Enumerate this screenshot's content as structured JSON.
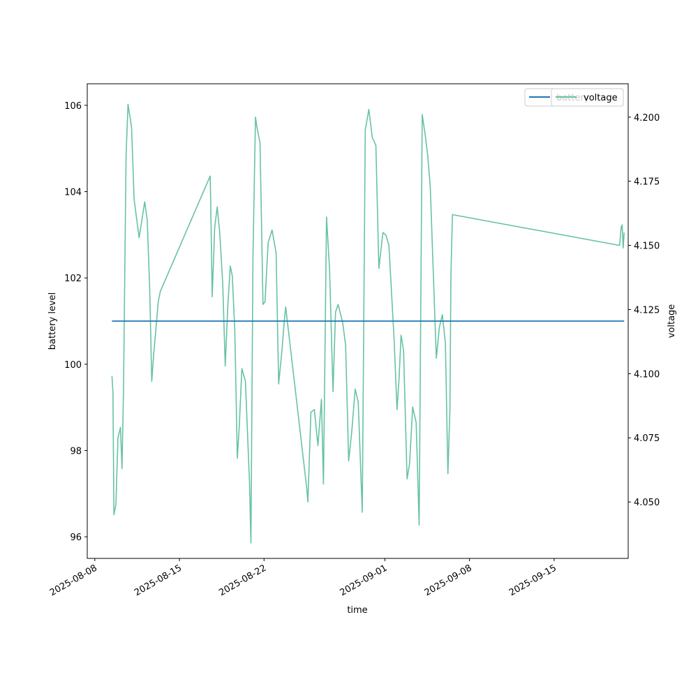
{
  "chart_data": {
    "type": "line",
    "xlabel": "time",
    "ylabel_left": "battery level",
    "ylabel_right": "voltage",
    "x_range": [
      "2025-08-07T09:00",
      "2025-09-21T03:00"
    ],
    "ylim_left": [
      95.5,
      106.5
    ],
    "ylim_right": [
      4.028,
      4.213
    ],
    "x_ticks": [
      "2025-08-08",
      "2025-08-15",
      "2025-08-22",
      "2025-09-01",
      "2025-09-08",
      "2025-09-15"
    ],
    "y_ticks_left": [
      96,
      98,
      100,
      102,
      104,
      106
    ],
    "y_ticks_right": [
      4.05,
      4.075,
      4.1,
      4.125,
      4.15,
      4.175,
      4.2
    ],
    "legend_position": "top-right",
    "colors": {
      "battery": "#1f77b4",
      "voltage": "#66c2a5"
    },
    "series": [
      {
        "name": "battery",
        "axis": "left",
        "x": [
          "2025-08-09T10:00",
          "2025-09-20T19:00"
        ],
        "values": [
          101,
          101
        ]
      },
      {
        "name": "voltage",
        "axis": "right",
        "x": [
          "2025-08-09T10:00",
          "2025-08-09T12:00",
          "2025-08-09T14:00",
          "2025-08-09T18:00",
          "2025-08-09T22:00",
          "2025-08-10T03:00",
          "2025-08-10T06:00",
          "2025-08-10T09:00",
          "2025-08-10T14:00",
          "2025-08-10T18:00",
          "2025-08-11T01:00",
          "2025-08-11T06:00",
          "2025-08-11T16:00",
          "2025-08-12T03:00",
          "2025-08-12T08:00",
          "2025-08-12T13:00",
          "2025-08-12T17:00",
          "2025-08-12T21:00",
          "2025-08-13T02:00",
          "2025-08-13T06:00",
          "2025-08-13T10:00",
          "2025-08-17T13:00",
          "2025-08-17T14:00",
          "2025-08-17T17:00",
          "2025-08-17T22:00",
          "2025-08-18T03:00",
          "2025-08-18T08:00",
          "2025-08-18T14:00",
          "2025-08-18T19:00",
          "2025-08-19T00:00",
          "2025-08-19T05:00",
          "2025-08-19T09:00",
          "2025-08-19T14:00",
          "2025-08-19T19:00",
          "2025-08-19T23:00",
          "2025-08-20T04:00",
          "2025-08-20T11:00",
          "2025-08-20T19:00",
          "2025-08-20T22:00",
          "2025-08-21T02:00",
          "2025-08-21T07:00",
          "2025-08-21T10:00",
          "2025-08-21T16:00",
          "2025-08-21T22:00",
          "2025-08-22T02:00",
          "2025-08-22T08:00",
          "2025-08-22T16:00",
          "2025-08-23T00:00",
          "2025-08-23T05:00",
          "2025-08-23T12:00",
          "2025-08-23T16:00",
          "2025-08-23T19:00",
          "2025-08-25T13:00",
          "2025-08-25T15:00",
          "2025-08-25T21:00",
          "2025-08-26T04:00",
          "2025-08-26T11:00",
          "2025-08-26T18:00",
          "2025-08-26T22:00",
          "2025-08-27T04:00",
          "2025-08-27T10:00",
          "2025-08-27T17:00",
          "2025-08-27T22:00",
          "2025-08-28T03:00",
          "2025-08-28T08:00",
          "2025-08-28T12:00",
          "2025-08-28T18:00",
          "2025-08-29T00:00",
          "2025-08-29T06:00",
          "2025-08-29T13:00",
          "2025-08-29T19:00",
          "2025-08-30T03:00",
          "2025-08-30T09:00",
          "2025-08-30T16:00",
          "2025-08-30T23:00",
          "2025-08-31T06:00",
          "2025-08-31T12:00",
          "2025-08-31T20:00",
          "2025-09-01T02:00",
          "2025-09-01T08:00",
          "2025-09-01T18:00",
          "2025-09-02T00:00",
          "2025-09-02T04:00",
          "2025-09-02T08:00",
          "2025-09-02T13:00",
          "2025-09-02T20:00",
          "2025-09-03T01:00",
          "2025-09-03T07:00",
          "2025-09-03T14:00",
          "2025-09-03T20:00",
          "2025-09-04T02:00",
          "2025-09-04T08:00",
          "2025-09-04T13:00",
          "2025-09-04T18:00",
          "2025-09-05T00:00",
          "2025-09-05T06:00",
          "2025-09-05T12:00",
          "2025-09-05T18:00",
          "2025-09-06T00:00",
          "2025-09-06T05:00",
          "2025-09-06T09:00",
          "2025-09-06T11:00",
          "2025-09-06T14:00",
          "2025-09-20T10:00",
          "2025-09-20T13:00",
          "2025-09-20T15:00",
          "2025-09-20T17:00",
          "2025-09-20T19:00"
        ],
        "values": [
          4.099,
          4.093,
          4.045,
          4.049,
          4.075,
          4.079,
          4.063,
          4.095,
          4.185,
          4.205,
          4.196,
          4.168,
          4.153,
          4.167,
          4.16,
          4.133,
          4.097,
          4.108,
          4.119,
          4.128,
          4.132,
          4.177,
          4.168,
          4.13,
          4.157,
          4.165,
          4.155,
          4.135,
          4.103,
          4.126,
          4.142,
          4.138,
          4.117,
          4.067,
          4.08,
          4.102,
          4.097,
          4.058,
          4.034,
          4.145,
          4.2,
          4.196,
          4.19,
          4.127,
          4.128,
          4.151,
          4.156,
          4.147,
          4.096,
          4.11,
          4.12,
          4.126,
          4.055,
          4.05,
          4.085,
          4.086,
          4.072,
          4.09,
          4.057,
          4.161,
          4.141,
          4.093,
          4.124,
          4.127,
          4.123,
          4.12,
          4.111,
          4.066,
          4.077,
          4.094,
          4.089,
          4.046,
          4.195,
          4.203,
          4.192,
          4.189,
          4.141,
          4.155,
          4.154,
          4.15,
          4.114,
          4.086,
          4.098,
          4.115,
          4.109,
          4.059,
          4.065,
          4.087,
          4.081,
          4.041,
          4.201,
          4.193,
          4.185,
          4.173,
          4.14,
          4.106,
          4.118,
          4.123,
          4.112,
          4.061,
          4.086,
          4.138,
          4.162,
          4.15,
          4.157,
          4.158,
          4.149,
          4.155
        ]
      }
    ]
  }
}
